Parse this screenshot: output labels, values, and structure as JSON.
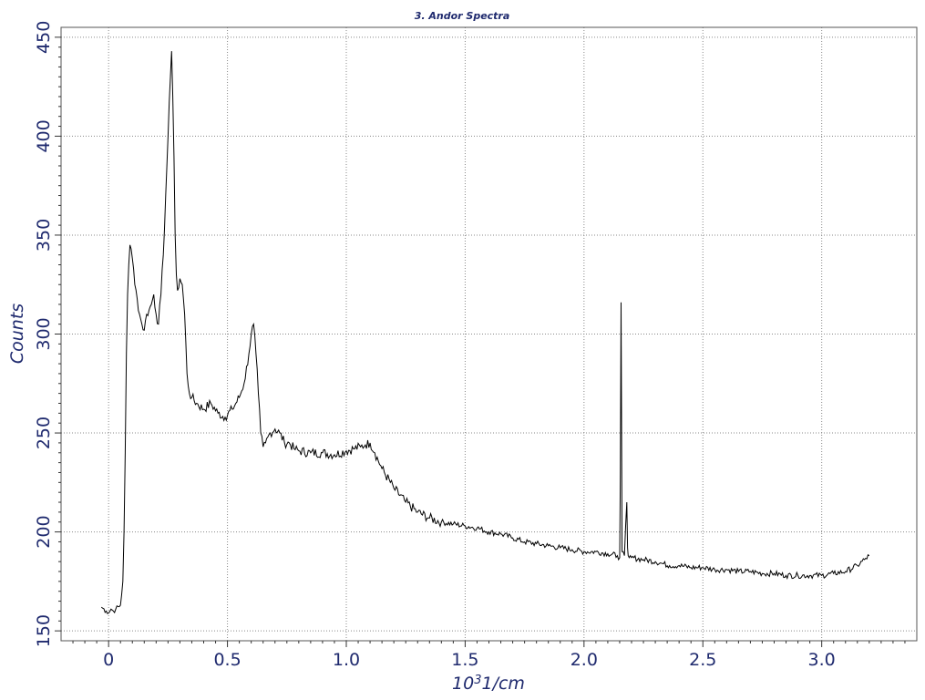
{
  "chart_data": {
    "type": "line",
    "title": "3. Andor Spectra",
    "xlabel_main": "10",
    "xlabel_sup": "3",
    "xlabel_rest": "1/cm",
    "ylabel": "Counts",
    "xlim": [
      -0.2,
      3.4
    ],
    "ylim": [
      145,
      455
    ],
    "x_ticks": [
      0,
      0.5,
      1.0,
      1.5,
      2.0,
      2.5,
      3.0
    ],
    "x_tick_labels": [
      "0",
      "0.5",
      "1.0",
      "1.5",
      "2.0",
      "2.5",
      "3.0"
    ],
    "y_ticks": [
      150,
      200,
      250,
      300,
      350,
      400,
      450
    ],
    "y_tick_labels": [
      "150",
      "200",
      "250",
      "300",
      "350",
      "400",
      "450"
    ],
    "grid": true,
    "series": [
      {
        "color": "#000000",
        "x": [
          -0.03,
          -0.01,
          0.0,
          0.01,
          0.02,
          0.03,
          0.05,
          0.06,
          0.065,
          0.07,
          0.075,
          0.08,
          0.085,
          0.09,
          0.095,
          0.1,
          0.11,
          0.12,
          0.13,
          0.14,
          0.15,
          0.16,
          0.17,
          0.18,
          0.19,
          0.2,
          0.21,
          0.22,
          0.23,
          0.24,
          0.25,
          0.26,
          0.265,
          0.27,
          0.275,
          0.28,
          0.285,
          0.29,
          0.3,
          0.31,
          0.32,
          0.33,
          0.34,
          0.35,
          0.37,
          0.4,
          0.43,
          0.46,
          0.49,
          0.52,
          0.55,
          0.57,
          0.59,
          0.6,
          0.61,
          0.62,
          0.63,
          0.64,
          0.65,
          0.66,
          0.67,
          0.68,
          0.7,
          0.72,
          0.74,
          0.76,
          0.78,
          0.8,
          0.85,
          0.9,
          0.95,
          1.0,
          1.03,
          1.06,
          1.08,
          1.1,
          1.12,
          1.15,
          1.2,
          1.25,
          1.3,
          1.35,
          1.4,
          1.45,
          1.5,
          1.55,
          1.6,
          1.65,
          1.7,
          1.75,
          1.8,
          1.85,
          1.9,
          1.95,
          2.0,
          2.05,
          2.1,
          2.14,
          2.15,
          2.153,
          2.156,
          2.16,
          2.17,
          2.18,
          2.183,
          2.186,
          2.19,
          2.2,
          2.25,
          2.3,
          2.33,
          2.36,
          2.4,
          2.45,
          2.5,
          2.55,
          2.6,
          2.65,
          2.7,
          2.75,
          2.8,
          2.85,
          2.9,
          2.95,
          3.0,
          3.05,
          3.1,
          3.15,
          3.18,
          3.2
        ],
        "y": [
          162,
          160,
          159,
          161,
          160,
          161,
          163,
          175,
          200,
          240,
          290,
          320,
          335,
          345,
          343,
          338,
          325,
          318,
          310,
          305,
          302,
          310,
          312,
          315,
          320,
          310,
          305,
          320,
          340,
          370,
          400,
          430,
          443,
          420,
          390,
          350,
          330,
          322,
          328,
          325,
          310,
          280,
          270,
          268,
          265,
          262,
          265,
          260,
          258,
          262,
          268,
          275,
          290,
          300,
          305,
          290,
          270,
          250,
          243,
          245,
          248,
          250,
          252,
          250,
          245,
          245,
          242,
          241,
          240,
          240,
          239,
          241,
          242,
          243,
          244,
          245,
          240,
          232,
          222,
          215,
          210,
          207,
          205,
          204,
          203,
          202,
          200,
          199,
          197,
          195,
          194,
          193,
          192,
          191,
          190,
          190,
          189,
          188,
          187,
          230,
          316,
          190,
          188,
          215,
          192,
          188,
          187,
          187,
          186,
          185,
          184,
          183,
          183,
          182,
          182,
          181,
          181,
          180,
          180,
          179,
          179,
          178,
          178,
          178,
          178,
          179,
          180,
          183,
          186,
          188
        ]
      }
    ]
  }
}
